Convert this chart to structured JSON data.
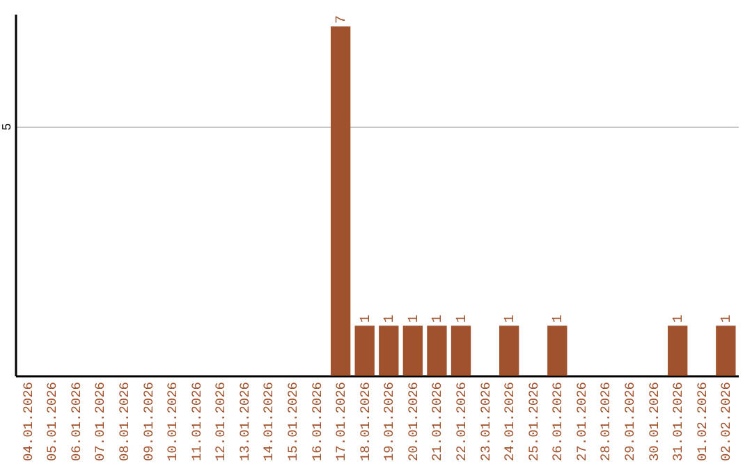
{
  "chart_data": {
    "type": "bar",
    "categories": [
      "04.01.2026",
      "05.01.2026",
      "06.01.2026",
      "07.01.2026",
      "08.01.2026",
      "09.01.2026",
      "10.01.2026",
      "11.01.2026",
      "12.01.2026",
      "13.01.2026",
      "14.01.2026",
      "15.01.2026",
      "16.01.2026",
      "17.01.2026",
      "18.01.2026",
      "19.01.2026",
      "20.01.2026",
      "21.01.2026",
      "22.01.2026",
      "23.01.2026",
      "24.01.2026",
      "25.01.2026",
      "26.01.2026",
      "27.01.2026",
      "28.01.2026",
      "29.01.2026",
      "30.01.2026",
      "31.01.2026",
      "01.02.2026",
      "02.02.2026"
    ],
    "values": [
      null,
      null,
      null,
      null,
      null,
      null,
      null,
      null,
      null,
      null,
      null,
      null,
      null,
      7,
      1,
      1,
      1,
      1,
      1,
      null,
      1,
      null,
      1,
      null,
      null,
      null,
      null,
      1,
      null,
      1
    ],
    "color": "#a0522d",
    "ylim": [
      0,
      7.25
    ],
    "yticks": [
      5
    ],
    "grid": "y",
    "data_labels": true
  }
}
